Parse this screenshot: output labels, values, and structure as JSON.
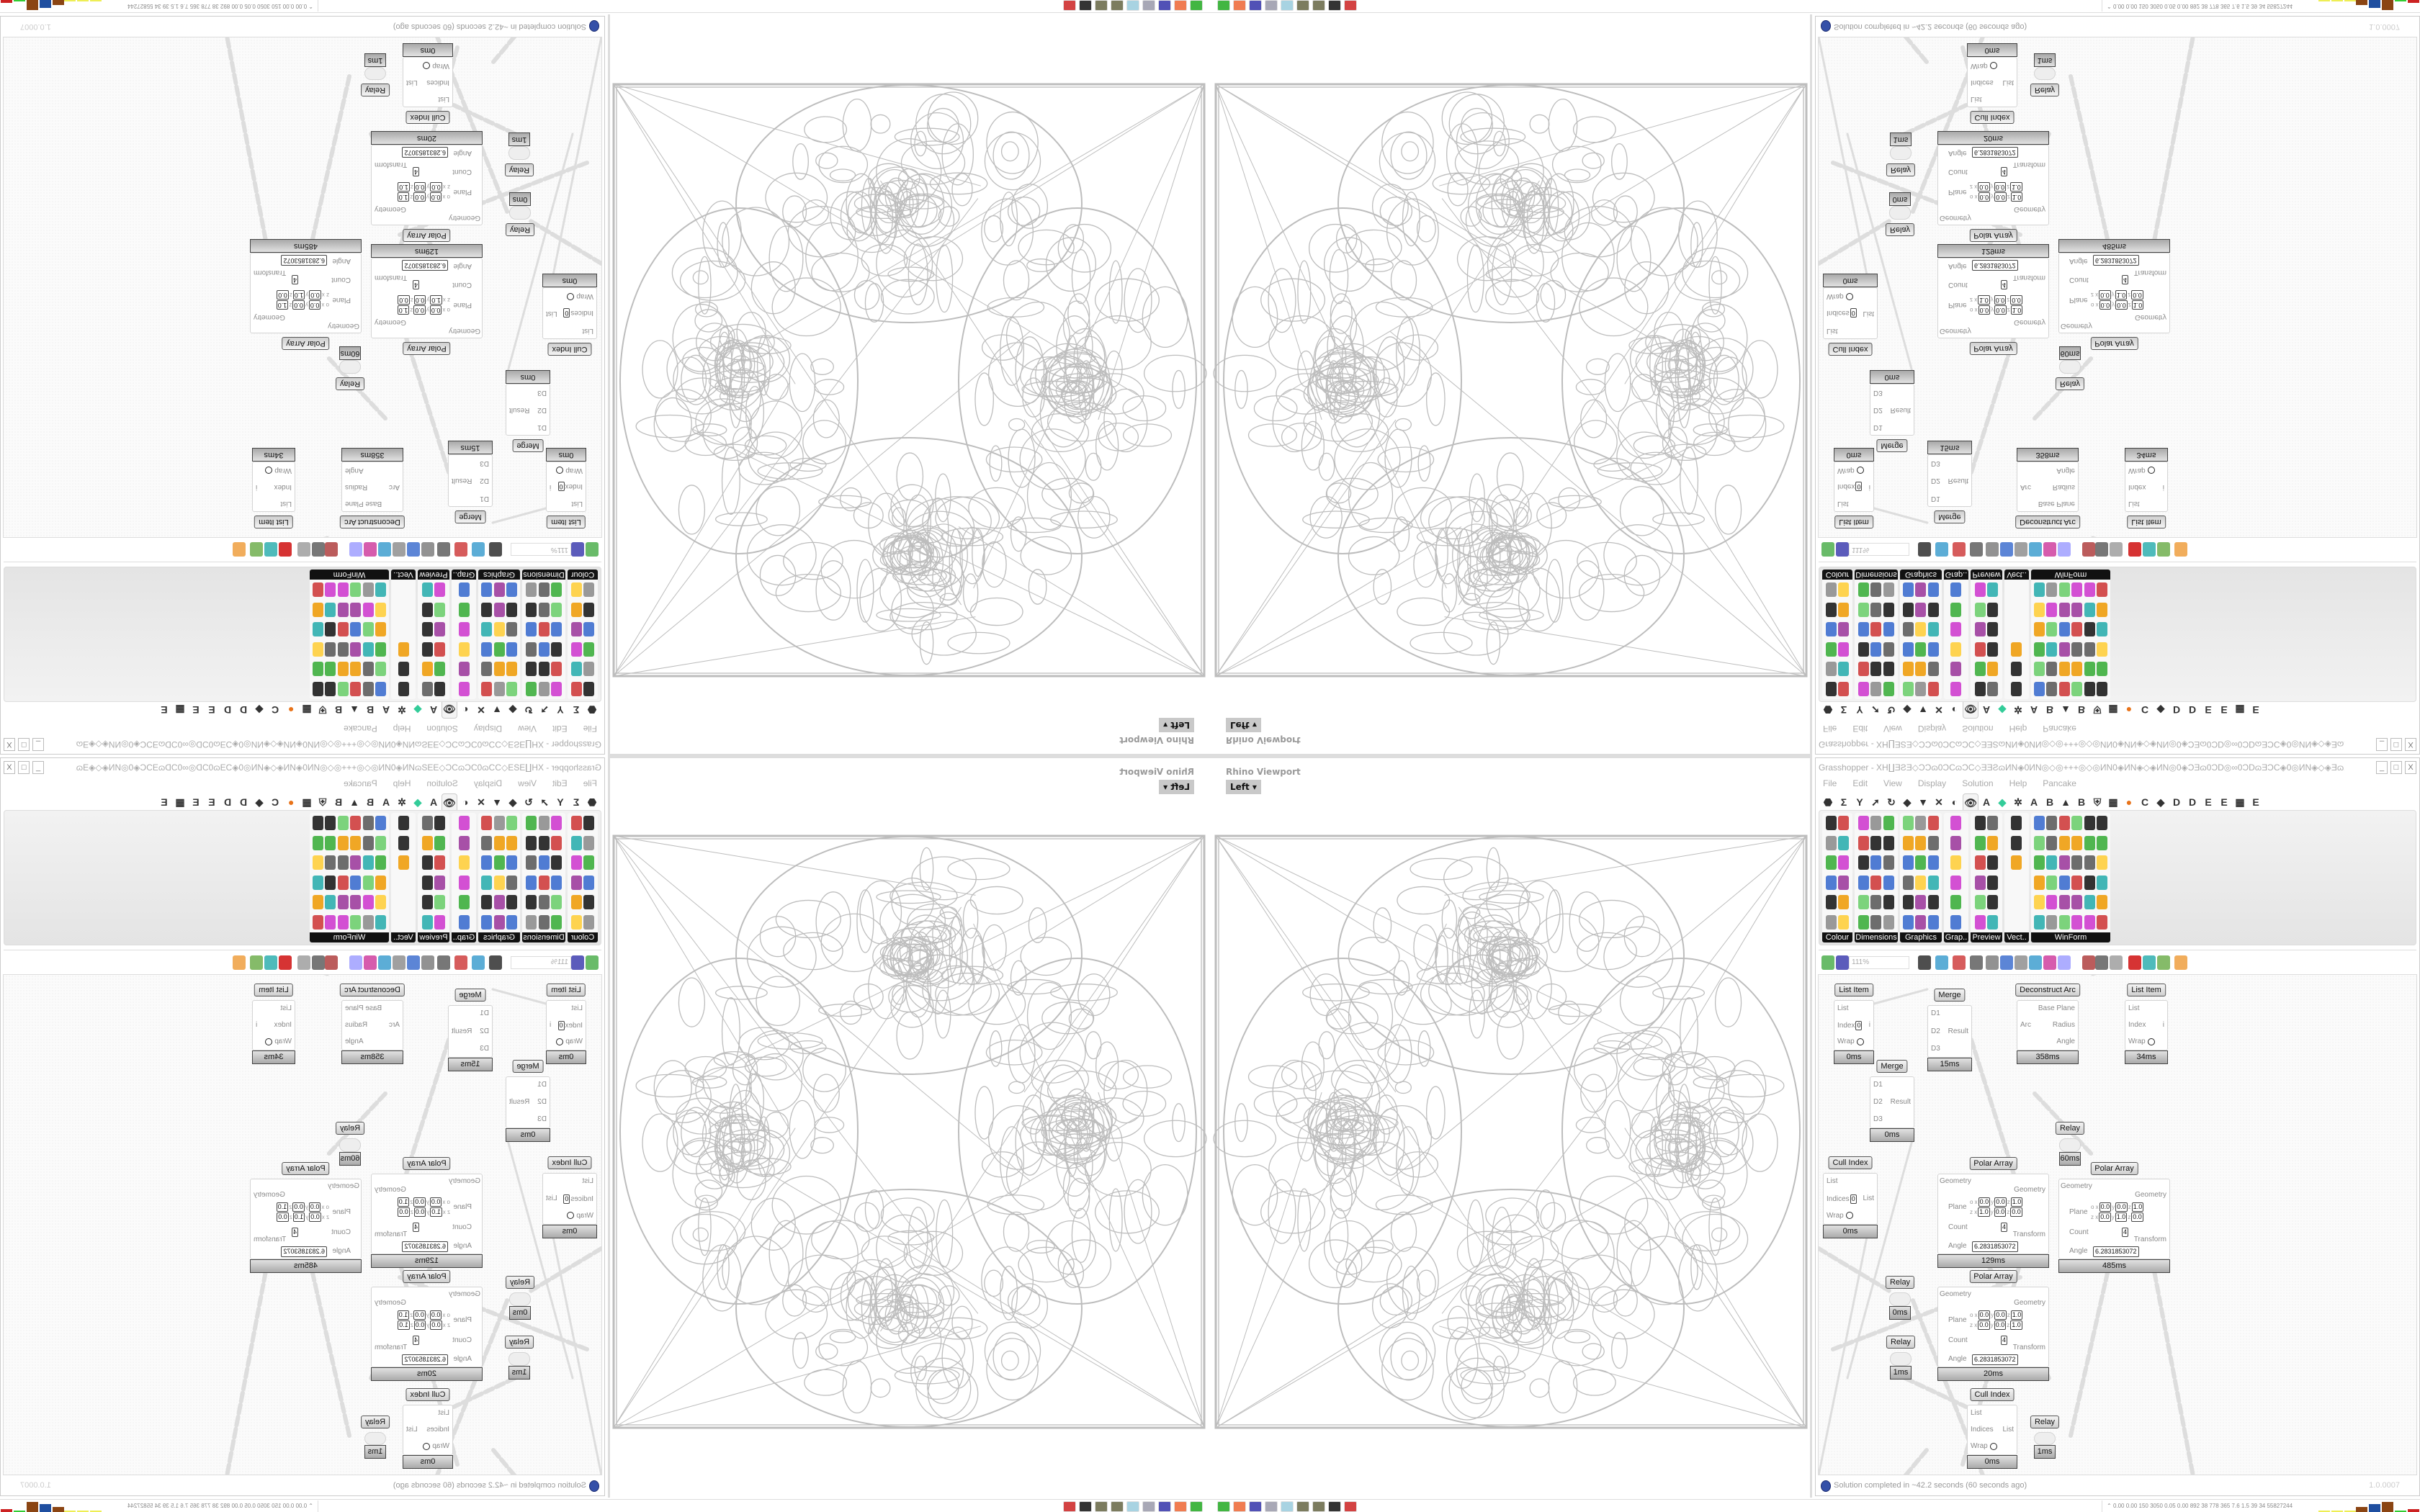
{
  "rhino": {
    "title": "Rhino Viewport",
    "view_tab": "Left ▾"
  },
  "grasshopper": {
    "title": "Grasshopper - XH∐ƎƧƎ◇ƆƆɷ0ƆCɷƆC◇ƎƎƧɷИN◈0ИN◎◇◎+++◎◇◎ИN0◈ИN◈◇◈ИN◎0◈ƆƎɷ0ƆD◎∞0ƆDɷƎƆC◈0◎ИN◈◇◈ƎɷƎƎ⊞+ƎƧ+⊞ƎɷƎƎ◈◇◈ɷƆƎƎ⊞◈◈ƆC…",
    "window_buttons": [
      "_",
      "□",
      "X"
    ],
    "menu": [
      "File",
      "Edit",
      "View",
      "Display",
      "Solution",
      "Help",
      "Pancake"
    ],
    "tab_icons": [
      "⬣",
      "Σ",
      "Y",
      "➚",
      "↻",
      "◆",
      "▼",
      "✕",
      "◐",
      "👁",
      "A",
      "◆",
      "✲",
      "A",
      "B",
      "▲",
      "B",
      "⛨",
      "▦",
      "●",
      "C",
      "◆",
      "D",
      "D",
      "E",
      "E",
      "▦",
      "E"
    ],
    "ribbon_panels": [
      "Colour",
      "Dimensions",
      "Graphics",
      "Grap..",
      "Preview",
      "Vect..",
      "WinForm"
    ],
    "zoom_level": "111%",
    "components": [
      {
        "title": "List Item",
        "inputs": [
          "List",
          "Index",
          "Wrap"
        ],
        "outputs": [
          "i"
        ],
        "index": "0",
        "time": "0ms"
      },
      {
        "title": "Merge",
        "inputs": [
          "D1",
          "D2",
          "D3"
        ],
        "outputs": [
          "Result"
        ],
        "time": "15ms"
      },
      {
        "title": "Deconstruct Arc",
        "inputs": [
          "Arc"
        ],
        "outputs": [
          "Base Plane",
          "Radius",
          "Angle"
        ],
        "time": "358ms"
      },
      {
        "title": "List Item",
        "inputs": [
          "List",
          "Index",
          "Wrap"
        ],
        "outputs": [
          "i"
        ],
        "time": "34ms"
      },
      {
        "title": "Merge",
        "inputs": [
          "D1",
          "D2",
          "D3"
        ],
        "outputs": [
          "Result"
        ],
        "time": "0ms"
      },
      {
        "title": "Relay",
        "inputs": [],
        "outputs": [],
        "time": "60ms"
      },
      {
        "title": "Cull Index",
        "inputs": [
          "List",
          "Indices",
          "Wrap"
        ],
        "outputs": [
          "List"
        ],
        "index": "0",
        "time": "0ms"
      },
      {
        "title": "Polar Array",
        "inputs": [
          "Geometry",
          "Plane",
          "Count",
          "Angle"
        ],
        "outputs": [
          "Geometry",
          "Transform"
        ],
        "plane_o": [
          "0.0",
          "0.0",
          "1.0"
        ],
        "plane_z": [
          "1.0",
          "0.0",
          "0.0"
        ],
        "count": "4",
        "angle": "6.2831853072",
        "time": "129ms"
      },
      {
        "title": "Polar Array",
        "inputs": [
          "Geometry",
          "Plane",
          "Count",
          "Angle"
        ],
        "outputs": [
          "Geometry",
          "Transform"
        ],
        "plane_o": [
          "0.0",
          "0.0",
          "1.0"
        ],
        "plane_z": [
          "0.0",
          "1.0",
          "0.0"
        ],
        "count": "4",
        "angle": "6.2831853072",
        "time": "485ms"
      },
      {
        "title": "Polar Array",
        "inputs": [
          "Geometry",
          "Plane",
          "Count",
          "Angle"
        ],
        "outputs": [
          "Geometry",
          "Transform"
        ],
        "plane_o": [
          "0.0",
          "0.0",
          "1.0"
        ],
        "plane_z": [
          "0.0",
          "0.0",
          "1.0"
        ],
        "count": "4",
        "angle": "6.2831853072",
        "time": "20ms"
      },
      {
        "title": "Relay",
        "inputs": [],
        "outputs": [],
        "time": "0ms"
      },
      {
        "title": "Relay",
        "inputs": [],
        "outputs": [],
        "time": "1ms"
      },
      {
        "title": "Cull Index",
        "inputs": [
          "List",
          "Indices",
          "Wrap"
        ],
        "outputs": [
          "List"
        ],
        "time": "0ms"
      },
      {
        "title": "Relay",
        "inputs": [],
        "outputs": [],
        "time": "1ms"
      }
    ],
    "status": "Solution completed in ~42.2 seconds (60 seconds ago)",
    "version": "1.0.0007"
  },
  "taskbar": {
    "icons": [
      "process-monitor-icon",
      "firefox-icon",
      "floppy-64-icon",
      "script-icon",
      "notepad-icon",
      "seed-icon",
      "seed-icon",
      "inkscape-icon",
      "settings-red-icon"
    ],
    "perf_text": "0.00 0.00 150 3050 0.05 0.00 892 38 778 365 7.6 1.5 39 34 55827244"
  },
  "colors": {
    "accent_orange": "#e8731a",
    "perf_blue": "#1f4fa0",
    "perf_brown": "#8b4513"
  }
}
